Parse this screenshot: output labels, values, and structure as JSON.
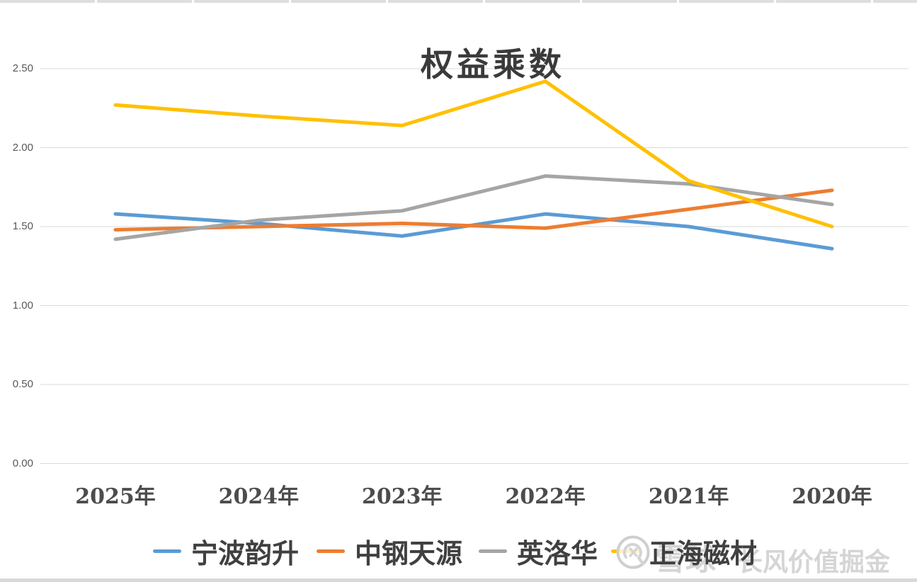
{
  "chart_data": {
    "type": "line",
    "title": "权益乘数",
    "categories": [
      "2025年",
      "2024年",
      "2023年",
      "2022年",
      "2021年",
      "2020年"
    ],
    "series": [
      {
        "name": "宁波韵升",
        "color": "#5B9BD5",
        "values": [
          1.58,
          1.52,
          1.44,
          1.58,
          1.5,
          1.36
        ]
      },
      {
        "name": "中钢天源",
        "color": "#ED7D31",
        "values": [
          1.48,
          1.5,
          1.52,
          1.49,
          1.61,
          1.73
        ]
      },
      {
        "name": "英洛华",
        "color": "#A5A5A5",
        "values": [
          1.42,
          1.54,
          1.6,
          1.82,
          1.77,
          1.64
        ]
      },
      {
        "name": "正海磁材",
        "color": "#FFC000",
        "values": [
          2.27,
          2.2,
          2.14,
          2.42,
          1.79,
          1.5
        ]
      }
    ],
    "xlabel": "",
    "ylabel": "",
    "y_axis": {
      "ticks": [
        "2.50",
        "2.00",
        "1.50",
        "1.00",
        "0.50",
        "0.00"
      ],
      "min": 0.0,
      "max": 2.5,
      "step": 0.5
    },
    "grid": "horizontal",
    "gridline_color": "#d9d9d9",
    "legend_position": "bottom"
  },
  "watermark": {
    "logo": "xueqiu-logo",
    "brand": "雪球",
    "author": "长风价值掘金",
    "color": "#d5d5d5"
  }
}
